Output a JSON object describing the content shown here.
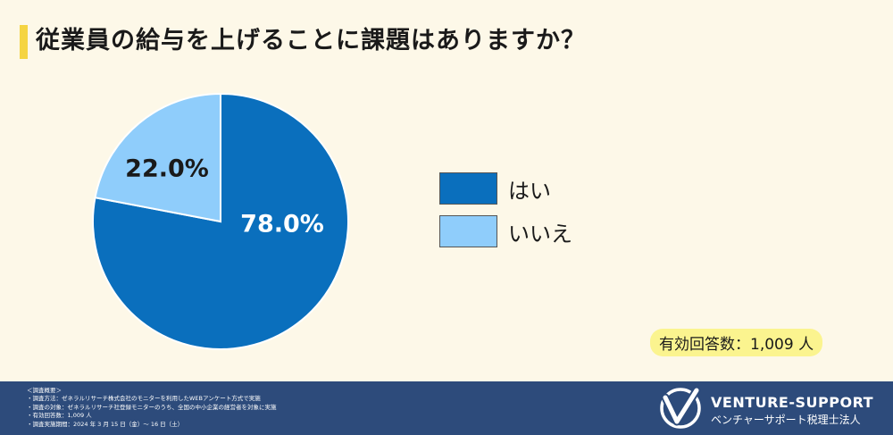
{
  "colors": {
    "background": "#fdf8e8",
    "accent": "#f5d442",
    "yes": "#0a6fbd",
    "no": "#8fcdfb",
    "footer": "#2d4b7b",
    "highlight": "#fbf48f"
  },
  "chart_data": {
    "type": "pie",
    "title": "従業員の給与を上げることに課題はありますか？",
    "categories": [
      "はい",
      "いいえ"
    ],
    "values": [
      78.0,
      22.0
    ],
    "labels": [
      "78.0%",
      "22.0%"
    ],
    "colors": [
      "#0a6fbd",
      "#8fcdfb"
    ],
    "legend": "right"
  },
  "respondents": "有効回答数：1,009 人",
  "footer": {
    "notes": [
      "＜調査概要＞",
      "・調査方法：ゼネラルリサーチ株式会社のモニターを利用したWEBアンケート方式で実施",
      "・調査の対象：ゼネラルリサーチ社登録モニターのうち、全国の中小企業の経営者を対象に実施",
      "・有効回答数：1,009 人",
      "・調査実施期間：2024 年 3 月 15 日（金）～ 16 日（土）"
    ],
    "brand_name": "VENTURE-SUPPORT",
    "brand_sub": "ベンチャーサポート税理士法人"
  }
}
